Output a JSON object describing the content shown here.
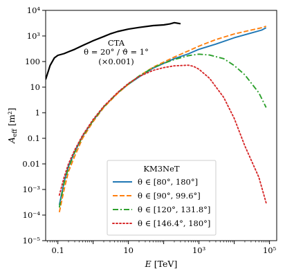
{
  "chart_data": {
    "type": "line",
    "xlabel": "E [TeV]",
    "ylabel": "A_eff [m²]",
    "xscale": "log",
    "yscale": "log",
    "xlim": [
      0.045,
      160000
    ],
    "ylim": [
      1e-05,
      10000
    ],
    "x_ticks": [
      {
        "value": 0.1,
        "label": "0.1"
      },
      {
        "value": 10,
        "label": "10"
      },
      {
        "value": 1000,
        "label": "10³"
      },
      {
        "value": 100000,
        "label": "10⁵"
      }
    ],
    "y_ticks": [
      {
        "value": 1e-05,
        "label": "10⁻⁵"
      },
      {
        "value": 0.0001,
        "label": "10⁻⁴"
      },
      {
        "value": 0.001,
        "label": "10⁻³"
      },
      {
        "value": 0.01,
        "label": "0.01"
      },
      {
        "value": 0.1,
        "label": "0.1"
      },
      {
        "value": 1,
        "label": "1"
      },
      {
        "value": 10,
        "label": "10"
      },
      {
        "value": 100,
        "label": "100"
      },
      {
        "value": 1000,
        "label": "10³"
      },
      {
        "value": 10000,
        "label": "10⁴"
      }
    ],
    "legend": {
      "title": "KM3NeT",
      "position": "lower-center",
      "entries": [
        "θ ∈ [80°, 180°]",
        "θ ∈ [90°, 99.6°]",
        "θ ∈ [120°, 131.8°]",
        "θ ∈ [146.4°, 180°]"
      ]
    },
    "annotation": {
      "lines": [
        "CTA",
        "θ = 20° / ϑ = 1°",
        "(×0.001)"
      ]
    },
    "series": [
      {
        "style": "solid",
        "color": "#000000",
        "width": 2.2,
        "points": [
          [
            0.045,
            20
          ],
          [
            0.06,
            70
          ],
          [
            0.08,
            140
          ],
          [
            0.1,
            175
          ],
          [
            0.15,
            205
          ],
          [
            0.2,
            240
          ],
          [
            0.3,
            300
          ],
          [
            0.5,
            420
          ],
          [
            1,
            650
          ],
          [
            2,
            950
          ],
          [
            3,
            1200
          ],
          [
            5,
            1500
          ],
          [
            10,
            1850
          ],
          [
            20,
            2150
          ],
          [
            50,
            2550
          ],
          [
            100,
            2700
          ],
          [
            150,
            2950
          ],
          [
            200,
            3300
          ],
          [
            300,
            3000
          ]
        ]
      },
      {
        "name": "θ ∈ [80°, 180°]",
        "style": "solid",
        "color": "#1f77b4",
        "width": 1.9,
        "points": [
          [
            0.11,
            0.00025
          ],
          [
            0.15,
            0.002
          ],
          [
            0.2,
            0.008
          ],
          [
            0.3,
            0.03
          ],
          [
            0.5,
            0.12
          ],
          [
            1,
            0.5
          ],
          [
            2,
            1.7
          ],
          [
            5,
            6
          ],
          [
            10,
            13
          ],
          [
            20,
            25
          ],
          [
            50,
            55
          ],
          [
            100,
            85
          ],
          [
            200,
            130
          ],
          [
            500,
            200
          ],
          [
            1000,
            300
          ],
          [
            3000,
            480
          ],
          [
            10000,
            850
          ],
          [
            30000,
            1300
          ],
          [
            60000,
            1700
          ],
          [
            80000,
            2100
          ]
        ]
      },
      {
        "name": "θ ∈ [90°, 99.6°]",
        "style": "dashed",
        "color": "#ff7f0e",
        "width": 1.9,
        "points": [
          [
            0.11,
            0.00013
          ],
          [
            0.15,
            0.001
          ],
          [
            0.2,
            0.005
          ],
          [
            0.3,
            0.02
          ],
          [
            0.5,
            0.1
          ],
          [
            1,
            0.45
          ],
          [
            2,
            1.6
          ],
          [
            5,
            5.8
          ],
          [
            10,
            13
          ],
          [
            20,
            27
          ],
          [
            50,
            60
          ],
          [
            100,
            95
          ],
          [
            200,
            150
          ],
          [
            500,
            260
          ],
          [
            1000,
            400
          ],
          [
            3000,
            720
          ],
          [
            10000,
            1200
          ],
          [
            30000,
            1700
          ],
          [
            60000,
            2100
          ],
          [
            80000,
            2400
          ]
        ]
      },
      {
        "name": "θ ∈ [120°, 131.8°]",
        "style": "dashdot",
        "color": "#2ca02c",
        "width": 1.9,
        "points": [
          [
            0.11,
            0.0002
          ],
          [
            0.15,
            0.0018
          ],
          [
            0.2,
            0.007
          ],
          [
            0.3,
            0.028
          ],
          [
            0.5,
            0.12
          ],
          [
            1,
            0.5
          ],
          [
            2,
            1.7
          ],
          [
            5,
            6.2
          ],
          [
            10,
            13.5
          ],
          [
            20,
            27
          ],
          [
            50,
            58
          ],
          [
            100,
            85
          ],
          [
            200,
            120
          ],
          [
            500,
            170
          ],
          [
            1000,
            195
          ],
          [
            2000,
            180
          ],
          [
            5000,
            130
          ],
          [
            10000,
            70
          ],
          [
            20000,
            30
          ],
          [
            50000,
            6
          ],
          [
            80000,
            1.6
          ]
        ]
      },
      {
        "name": "θ ∈ [146.4°, 180°]",
        "style": "dotted",
        "color": "#d62728",
        "width": 1.9,
        "points": [
          [
            0.11,
            0.0006
          ],
          [
            0.15,
            0.003
          ],
          [
            0.2,
            0.01
          ],
          [
            0.3,
            0.035
          ],
          [
            0.5,
            0.13
          ],
          [
            1,
            0.55
          ],
          [
            2,
            1.8
          ],
          [
            5,
            6.3
          ],
          [
            10,
            14
          ],
          [
            20,
            26
          ],
          [
            50,
            45
          ],
          [
            100,
            58
          ],
          [
            200,
            68
          ],
          [
            500,
            72
          ],
          [
            700,
            65
          ],
          [
            1000,
            50
          ],
          [
            2000,
            22
          ],
          [
            5000,
            4
          ],
          [
            10000,
            0.6
          ],
          [
            20000,
            0.05
          ],
          [
            50000,
            0.003
          ],
          [
            80000,
            0.0003
          ]
        ]
      }
    ]
  }
}
